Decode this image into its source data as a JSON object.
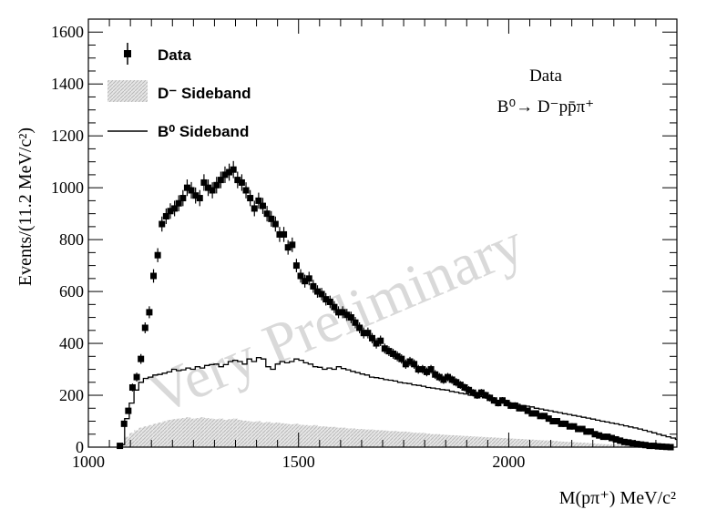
{
  "chart_data": {
    "type": "histogram",
    "title": "",
    "xlabel": "M(pπ⁺) MeV/c²",
    "ylabel": "Events/(11.2 MeV/c²)",
    "xlim": [
      1000,
      2400
    ],
    "ylim": [
      0,
      1650
    ],
    "x_ticks": [
      "1000",
      "1500",
      "2000"
    ],
    "y_ticks": [
      "0",
      "200",
      "400",
      "600",
      "800",
      "1000",
      "1200",
      "1400",
      "1600"
    ],
    "legend": {
      "placement": "top-left",
      "entries": [
        "Data",
        "D⁻ Sideband",
        "B⁰ Sideband"
      ]
    },
    "annotation": {
      "line1": "Data",
      "line2": "B⁰→ D⁻pp̄π⁺"
    },
    "watermark": "Very Preliminary",
    "series": [
      {
        "name": "Data",
        "style": "points",
        "color": "#000000",
        "x": [
          1075,
          1085,
          1095,
          1105,
          1115,
          1125,
          1135,
          1145,
          1155,
          1165,
          1175,
          1185,
          1195,
          1205,
          1215,
          1225,
          1235,
          1245,
          1255,
          1265,
          1275,
          1285,
          1295,
          1305,
          1315,
          1325,
          1335,
          1345,
          1355,
          1365,
          1375,
          1385,
          1395,
          1405,
          1415,
          1425,
          1435,
          1445,
          1455,
          1465,
          1475,
          1485,
          1495,
          1505,
          1515,
          1525,
          1535,
          1545,
          1555,
          1565,
          1575,
          1585,
          1595,
          1605,
          1615,
          1625,
          1635,
          1645,
          1655,
          1665,
          1675,
          1685,
          1695,
          1705,
          1715,
          1725,
          1735,
          1745,
          1755,
          1765,
          1775,
          1785,
          1795,
          1805,
          1815,
          1825,
          1835,
          1845,
          1855,
          1865,
          1875,
          1885,
          1895,
          1905,
          1915,
          1925,
          1935,
          1945,
          1955,
          1965,
          1975,
          1985,
          1995,
          2005,
          2015,
          2025,
          2035,
          2045,
          2055,
          2065,
          2075,
          2085,
          2095,
          2105,
          2115,
          2125,
          2135,
          2145,
          2155,
          2165,
          2175,
          2185,
          2195,
          2205,
          2215,
          2225,
          2235,
          2245,
          2255,
          2265,
          2275,
          2285,
          2295,
          2305,
          2315,
          2325,
          2335,
          2345,
          2355,
          2365,
          2375,
          2385
        ],
        "values": [
          5,
          90,
          140,
          230,
          270,
          340,
          460,
          520,
          660,
          740,
          860,
          890,
          910,
          920,
          940,
          960,
          1000,
          990,
          970,
          960,
          1020,
          1000,
          990,
          1010,
          1030,
          1050,
          1060,
          1070,
          1030,
          1020,
          990,
          960,
          920,
          950,
          930,
          900,
          880,
          860,
          820,
          820,
          770,
          780,
          700,
          660,
          640,
          650,
          620,
          600,
          590,
          570,
          560,
          540,
          520,
          520,
          510,
          500,
          480,
          460,
          440,
          440,
          420,
          400,
          410,
          380,
          370,
          360,
          350,
          340,
          320,
          330,
          320,
          300,
          300,
          290,
          300,
          280,
          270,
          260,
          270,
          260,
          250,
          240,
          230,
          220,
          210,
          200,
          210,
          200,
          190,
          180,
          170,
          180,
          170,
          160,
          160,
          150,
          150,
          140,
          130,
          130,
          120,
          120,
          110,
          100,
          100,
          90,
          90,
          80,
          80,
          70,
          70,
          60,
          60,
          50,
          45,
          40,
          40,
          35,
          30,
          25,
          20,
          18,
          15,
          12,
          10,
          8,
          5,
          5,
          3,
          2,
          1,
          0
        ],
        "errors": [
          2,
          10,
          12,
          15,
          17,
          19,
          21,
          23,
          26,
          27,
          29,
          30,
          30,
          30,
          31,
          31,
          32,
          32,
          31,
          31,
          32,
          32,
          31,
          32,
          32,
          32,
          33,
          33,
          32,
          32,
          31,
          31,
          30,
          31,
          31,
          30,
          30,
          29,
          29,
          29,
          28,
          28,
          26,
          26,
          25,
          26,
          25,
          24,
          24,
          24,
          24,
          23,
          23,
          23,
          23,
          22,
          22,
          21,
          21,
          21,
          20,
          20,
          20,
          19,
          19,
          19,
          19,
          18,
          18,
          18,
          18,
          17,
          17,
          17,
          17,
          17,
          16,
          16,
          16,
          16,
          16,
          15,
          15,
          15,
          14,
          14,
          14,
          14,
          14,
          13,
          13,
          13,
          13,
          13,
          13,
          12,
          12,
          12,
          11,
          11,
          11,
          11,
          10,
          10,
          10,
          9,
          9,
          9,
          9,
          8,
          8,
          8,
          8,
          7,
          7,
          6,
          6,
          6,
          5,
          5,
          4,
          4,
          4,
          3,
          3,
          3,
          2,
          2,
          2,
          1,
          1,
          1
        ]
      },
      {
        "name": "D⁻ Sideband",
        "style": "filled-histogram",
        "color": "#d0d0d0",
        "bin_edges_start": 1075,
        "bin_width": 11.2,
        "values": [
          15,
          40,
          55,
          65,
          75,
          80,
          85,
          90,
          95,
          100,
          105,
          108,
          110,
          112,
          115,
          110,
          112,
          115,
          112,
          110,
          108,
          110,
          105,
          108,
          110,
          105,
          102,
          100,
          98,
          100,
          95,
          97,
          93,
          95,
          92,
          90,
          88,
          90,
          86,
          85,
          83,
          85,
          80,
          80,
          78,
          78,
          75,
          75,
          72,
          72,
          70,
          70,
          68,
          68,
          66,
          65,
          64,
          62,
          62,
          60,
          60,
          58,
          56,
          55,
          55,
          52,
          50,
          50,
          48,
          47,
          46,
          45,
          44,
          43,
          42,
          41,
          40,
          39,
          38,
          37,
          36,
          35,
          34,
          33,
          32,
          31,
          30,
          29,
          28,
          27,
          26,
          25,
          24,
          22,
          21,
          20,
          19,
          18,
          17,
          16,
          14,
          13,
          12,
          11,
          10,
          9,
          8,
          7,
          6,
          5,
          4,
          3,
          3,
          2,
          2,
          1,
          1,
          0
        ]
      },
      {
        "name": "B⁰ Sideband",
        "style": "step",
        "color": "#000000",
        "bin_edges_start": 1075,
        "bin_width": 11.2,
        "values": [
          10,
          110,
          170,
          220,
          250,
          265,
          270,
          278,
          280,
          285,
          290,
          300,
          295,
          298,
          305,
          300,
          310,
          305,
          315,
          318,
          320,
          310,
          318,
          330,
          335,
          330,
          320,
          340,
          330,
          345,
          340,
          310,
          300,
          320,
          330,
          325,
          330,
          340,
          335,
          325,
          320,
          310,
          308,
          300,
          305,
          300,
          310,
          303,
          298,
          292,
          287,
          282,
          278,
          270,
          268,
          265,
          260,
          258,
          255,
          250,
          247,
          245,
          240,
          238,
          235,
          230,
          228,
          225,
          222,
          220,
          215,
          212,
          208,
          205,
          200,
          198,
          195,
          190,
          188,
          185,
          180,
          177,
          172,
          168,
          165,
          160,
          158,
          155,
          150,
          147,
          143,
          140,
          136,
          133,
          129,
          126,
          122,
          119,
          115,
          112,
          108,
          104,
          100,
          97,
          93,
          90,
          86,
          82,
          78,
          74,
          70,
          65,
          60,
          55,
          50,
          45,
          40,
          35,
          30,
          25,
          20,
          15,
          10,
          5,
          2,
          1
        ]
      }
    ]
  }
}
